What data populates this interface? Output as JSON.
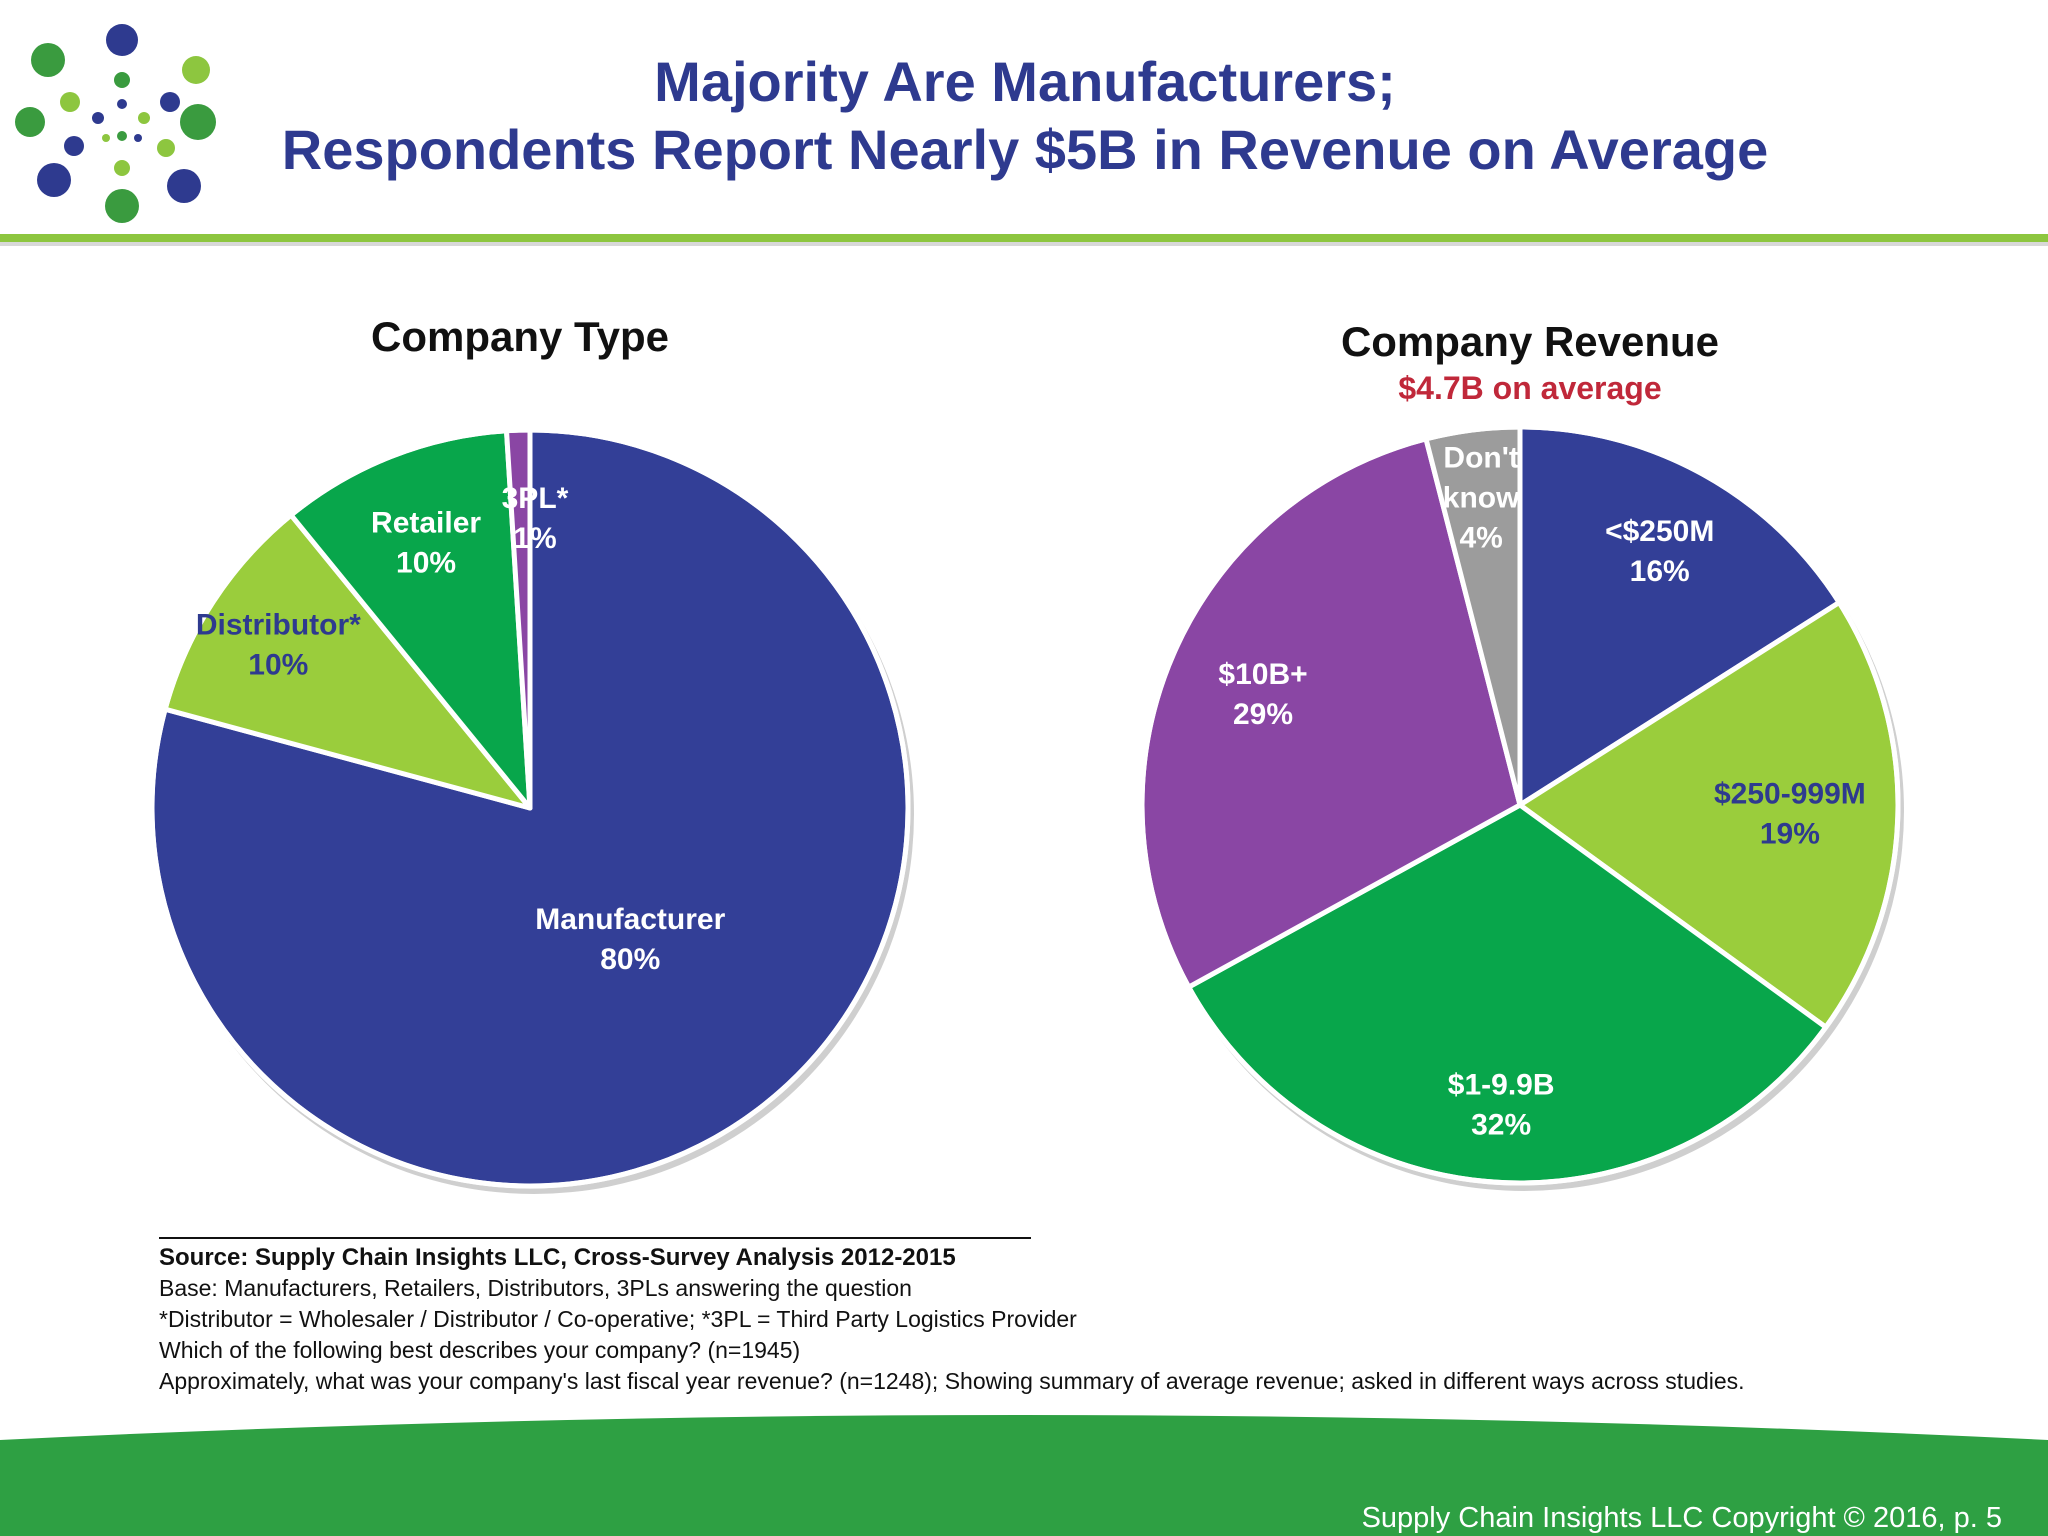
{
  "title": {
    "line1": "Majority Are Manufacturers;",
    "line2": "Respondents Report Nearly $5B in Revenue on Average"
  },
  "colors": {
    "title": "#2e3a8f",
    "accent_green": "#8dc63f",
    "footer_green": "#2ea043",
    "subtitle_red": "#c0283a"
  },
  "chart_data": [
    {
      "type": "pie",
      "title": "Company Type",
      "categories": [
        "Manufacturer",
        "Distributor*",
        "Retailer",
        "3PL*"
      ],
      "values": [
        80,
        10,
        10,
        1
      ],
      "value_labels": [
        "80%",
        "10%",
        "10%",
        "1%"
      ],
      "colors": [
        "#333f97",
        "#9acd3c",
        "#08a64b",
        "#8a46a4"
      ],
      "label_colors": [
        "#ffffff",
        "#2e3a8f",
        "#ffffff",
        "#ffffff"
      ]
    },
    {
      "type": "pie",
      "title": "Company Revenue",
      "subtitle": "$4.7B on average",
      "categories": [
        "<$250M",
        "$250-999M",
        "$1-9.9B",
        "$10B+",
        "Don't know"
      ],
      "values": [
        16,
        19,
        32,
        29,
        4
      ],
      "value_labels": [
        "16%",
        "19%",
        "32%",
        "29%",
        "4%"
      ],
      "colors": [
        "#333f97",
        "#9acd3c",
        "#08a64b",
        "#8a46a4",
        "#9c9c9c"
      ],
      "label_colors": [
        "#ffffff",
        "#2e3a8f",
        "#ffffff",
        "#ffffff",
        "#ffffff"
      ]
    }
  ],
  "source": {
    "line1": "Source: Supply Chain Insights LLC, Cross-Survey Analysis 2012-2015",
    "line2": "Base: Manufacturers, Retailers, Distributors, 3PLs answering the question",
    "line3": "*Distributor = Wholesaler / Distributor / Co-operative; *3PL = Third Party Logistics Provider",
    "line4": "Which of the following best describes your company? (n=1945)",
    "line5": "Approximately, what was your company's last fiscal year revenue? (n=1248); Showing summary of average revenue; asked in different ways across studies."
  },
  "footer": {
    "copyright": "Supply Chain Insights LLC Copyright © 2016, p. 5"
  }
}
